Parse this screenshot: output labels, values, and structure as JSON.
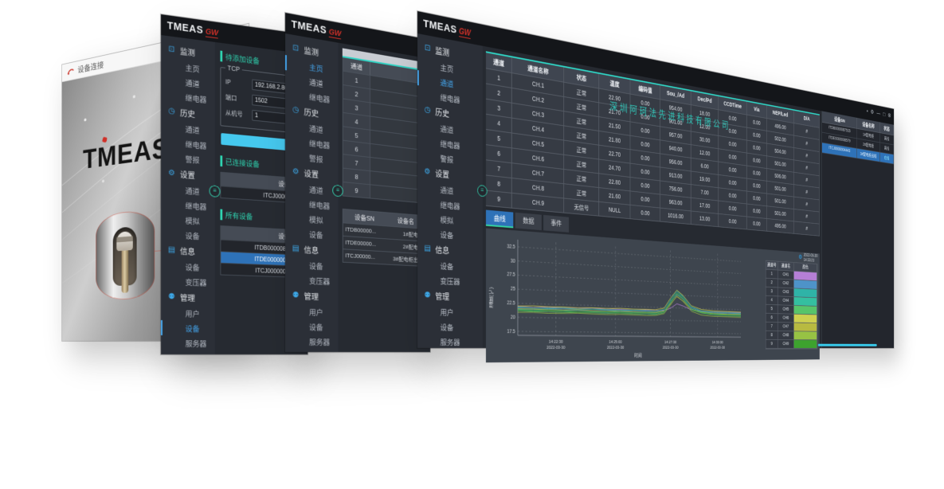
{
  "brand": {
    "name": "TMEAS",
    "suffix": "GW"
  },
  "win1": {
    "title": "设备连接",
    "logo_text": "TMEAS"
  },
  "win2": {
    "sidebar": [
      {
        "glyph": "⊡",
        "label": "监测",
        "items": [
          {
            "t": "主页"
          },
          {
            "t": "通道"
          },
          {
            "t": "继电器"
          }
        ]
      },
      {
        "glyph": "◷",
        "label": "历史",
        "items": [
          {
            "t": "通道"
          },
          {
            "t": "继电器"
          },
          {
            "t": "警报"
          }
        ]
      },
      {
        "glyph": "⚙",
        "label": "设置",
        "items": [
          {
            "t": "通道"
          },
          {
            "t": "继电器"
          },
          {
            "t": "模拟"
          },
          {
            "t": "设备"
          }
        ]
      },
      {
        "glyph": "▤",
        "label": "信息",
        "items": [
          {
            "t": "设备"
          },
          {
            "t": "变压器"
          }
        ]
      },
      {
        "glyph": "⚉",
        "label": "管理",
        "items": [
          {
            "t": "用户"
          },
          {
            "t": "设备",
            "sel": true
          },
          {
            "t": "服务器"
          }
        ]
      }
    ],
    "pending_header": "待添加设备",
    "tcp_label": "TCP",
    "fields": [
      {
        "label": "IP",
        "value": "192.168.2.86"
      },
      {
        "label": "端口",
        "value": "1502"
      },
      {
        "label": "从机号",
        "value": "1"
      }
    ],
    "connected_header": "已连接设备",
    "sn_col": "设备SN",
    "connected_rows": [
      "ITCJ000000..."
    ],
    "all_header": "所有设备",
    "all_rows": [
      {
        "sn": "ITDB0000087515"
      },
      {
        "sn": "ITDE0000008579",
        "sel": true
      },
      {
        "sn": "ITCJ0000004443"
      }
    ]
  },
  "win3": {
    "sidebar": [
      {
        "glyph": "⊡",
        "label": "监测",
        "items": [
          {
            "t": "主页",
            "sel": true
          },
          {
            "t": "通道"
          },
          {
            "t": "继电器"
          }
        ]
      },
      {
        "glyph": "◷",
        "label": "历史",
        "items": [
          {
            "t": "通道"
          },
          {
            "t": "继电器"
          },
          {
            "t": "警报"
          }
        ]
      },
      {
        "glyph": "⚙",
        "label": "设置",
        "items": [
          {
            "t": "通道"
          },
          {
            "t": "继电器"
          },
          {
            "t": "模拟"
          },
          {
            "t": "设备"
          }
        ]
      },
      {
        "glyph": "▤",
        "label": "信息",
        "items": [
          {
            "t": "设备"
          },
          {
            "t": "变压器"
          }
        ]
      },
      {
        "glyph": "⚉",
        "label": "管理",
        "items": [
          {
            "t": "用户"
          },
          {
            "t": "设备"
          },
          {
            "t": "服务器"
          }
        ]
      }
    ],
    "channel_header": "通道",
    "channel_rows": [
      "1",
      "2",
      "3",
      "4",
      "5",
      "6",
      "7",
      "8",
      "9"
    ],
    "device_headers": [
      "设备SN",
      "设备名"
    ],
    "device_rows": [
      {
        "sn": "ITDB00000...",
        "name": "1#配电柜"
      },
      {
        "sn": "ITDE00000...",
        "name": "2#配电柜"
      },
      {
        "sn": "ITCJ00000...",
        "name": "3#配电柜出线"
      }
    ]
  },
  "win4": {
    "sidebar": [
      {
        "glyph": "⊡",
        "label": "监测",
        "items": [
          {
            "t": "主页"
          },
          {
            "t": "通道",
            "sel": true
          },
          {
            "t": "继电器"
          }
        ]
      },
      {
        "glyph": "◷",
        "label": "历史",
        "items": [
          {
            "t": "通道"
          },
          {
            "t": "继电器"
          },
          {
            "t": "警报"
          }
        ]
      },
      {
        "glyph": "⚙",
        "label": "设置",
        "items": [
          {
            "t": "通道"
          },
          {
            "t": "继电器"
          },
          {
            "t": "模拟"
          },
          {
            "t": "设备"
          }
        ]
      },
      {
        "glyph": "▤",
        "label": "信息",
        "items": [
          {
            "t": "设备"
          },
          {
            "t": "变压器"
          }
        ]
      },
      {
        "glyph": "⚉",
        "label": "管理",
        "items": [
          {
            "t": "用户"
          },
          {
            "t": "设备"
          },
          {
            "t": "服务器"
          }
        ]
      }
    ],
    "titlebar_icons": [
      {
        "name": "pin-icon",
        "glyph": "▪"
      },
      {
        "name": "settings-icon",
        "glyph": "⚙"
      },
      {
        "name": "minimize-icon",
        "glyph": "—"
      },
      {
        "name": "maximize-icon",
        "glyph": "□"
      },
      {
        "name": "close-icon",
        "glyph": "⊗"
      }
    ],
    "watermark": "深圳阿珂法先进科技有限公司",
    "table": {
      "headers": [
        "通道",
        "通道名称",
        "状态",
        "温度",
        "编码值",
        "Sou_/Ad",
        "Dec/Pd",
        "CCDTime",
        "Via",
        "NEP/Led",
        "D/A"
      ],
      "rows": [
        [
          "1",
          "CH.1",
          "正常",
          "22.90",
          "0.00",
          "954.00",
          "18.00",
          "0.00",
          "0.00",
          "495.00",
          "#"
        ],
        [
          "2",
          "CH.2",
          "正常",
          "21.70",
          "0.00",
          "901.00",
          "12.00",
          "0.00",
          "0.00",
          "502.00",
          "#"
        ],
        [
          "3",
          "CH.3",
          "正常",
          "21.50",
          "0.00",
          "957.00",
          "30.00",
          "0.00",
          "0.00",
          "504.00",
          "#"
        ],
        [
          "4",
          "CH.4",
          "正常",
          "21.80",
          "0.00",
          "940.00",
          "12.00",
          "0.00",
          "0.00",
          "501.00",
          "#"
        ],
        [
          "5",
          "CH.5",
          "正常",
          "22.70",
          "0.00",
          "956.00",
          "6.00",
          "0.00",
          "0.00",
          "506.00",
          "#"
        ],
        [
          "6",
          "CH.6",
          "正常",
          "24.70",
          "0.00",
          "913.00",
          "19.00",
          "0.00",
          "0.00",
          "501.00",
          "#"
        ],
        [
          "7",
          "CH.7",
          "正常",
          "22.80",
          "0.00",
          "756.00",
          "7.00",
          "0.00",
          "0.00",
          "501.00",
          "#"
        ],
        [
          "8",
          "CH.8",
          "正常",
          "21.60",
          "0.00",
          "963.00",
          "17.00",
          "0.00",
          "0.00",
          "501.00",
          "#"
        ],
        [
          "9",
          "CH.9",
          "无信号",
          "NULL",
          "0.00",
          "1016.00",
          "13.00",
          "0.00",
          "0.00",
          "495.00",
          "#"
        ]
      ]
    },
    "tabs": [
      {
        "label": "曲线",
        "active": true
      },
      {
        "label": "数据"
      },
      {
        "label": "事件"
      }
    ],
    "chart_date": "2022-03-30",
    "chart_time": "14:33:23",
    "right_panel": {
      "headers": [
        "设备SN",
        "设备名称",
        "状态"
      ],
      "rows": [
        {
          "sn": "ITDB0000087515",
          "name": "1#配电柜",
          "status": "离线"
        },
        {
          "sn": "ITDE0000008579",
          "name": "2#配电柜",
          "status": "离线"
        },
        {
          "sn": "ITCJ0000004443",
          "name": "3#配电柜出线",
          "status": "在线",
          "sel": true
        }
      ]
    }
  },
  "chart_data": {
    "type": "line",
    "title": "",
    "xlabel": "时间",
    "ylabel": "温度(℃)",
    "ylim": [
      16.8,
      33.8
    ],
    "yticks": [
      32.5,
      30,
      27.5,
      25,
      22.5,
      20,
      17.5
    ],
    "xticks": [
      {
        "time": "14:22:30",
        "date": "2022-03-30",
        "f": 0.15
      },
      {
        "time": "14:25:00",
        "date": "2022-03-30",
        "f": 0.4
      },
      {
        "time": "14:27:30",
        "date": "2022-03-30",
        "f": 0.65
      },
      {
        "time": "14:30:00",
        "date": "2022-03-30",
        "f": 0.88
      }
    ],
    "grid": true,
    "x": [
      0,
      0.06,
      0.12,
      0.18,
      0.24,
      0.3,
      0.36,
      0.42,
      0.48,
      0.54,
      0.58,
      0.62,
      0.65,
      0.68,
      0.71,
      0.75,
      0.8,
      0.86,
      0.93,
      1
    ],
    "series": [
      {
        "name": "CH1",
        "color": "#b57fd6",
        "values": [
          21.9,
          21.8,
          21.95,
          21.85,
          21.9,
          22.0,
          21.85,
          21.9,
          21.8,
          21.9,
          21.85,
          21.9,
          22.4,
          23.3,
          22.9,
          22.2,
          21.95,
          21.9,
          21.85,
          21.9
        ]
      },
      {
        "name": "CH2",
        "color": "#4e93c9",
        "values": [
          21.6,
          21.5,
          21.65,
          21.55,
          21.6,
          21.5,
          21.6,
          21.7,
          21.55,
          21.6,
          21.5,
          21.8,
          23.5,
          25.1,
          24.3,
          22.6,
          21.9,
          21.7,
          21.6,
          21.65
        ]
      },
      {
        "name": "CH3",
        "color": "#2fb3a7",
        "values": [
          21.4,
          21.3,
          21.45,
          21.35,
          21.5,
          21.4,
          21.3,
          21.45,
          21.4,
          21.35,
          21.3,
          21.7,
          23.8,
          25.6,
          24.6,
          22.4,
          21.7,
          21.5,
          21.45,
          21.4
        ]
      },
      {
        "name": "CH4",
        "color": "#34bfa0",
        "values": [
          21.8,
          21.7,
          21.75,
          21.85,
          21.7,
          21.8,
          21.75,
          21.7,
          21.8,
          21.75,
          21.7,
          22.1,
          24.1,
          25.9,
          24.8,
          22.8,
          22.0,
          21.85,
          21.8,
          21.75
        ]
      },
      {
        "name": "CH5",
        "color": "#57c46a",
        "values": [
          21.2,
          21.1,
          21.15,
          21.05,
          21.2,
          21.15,
          21.1,
          21.2,
          21.1,
          21.15,
          21.1,
          21.5,
          23.4,
          25.3,
          24.2,
          22.2,
          21.6,
          21.3,
          21.2,
          21.15
        ]
      },
      {
        "name": "CH6",
        "color": "#cdd04f",
        "values": [
          22.0,
          22.1,
          22.0,
          22.05,
          21.95,
          22.05,
          22.0,
          22.1,
          22.0,
          22.05,
          22.0,
          22.4,
          24.4,
          26.0,
          25.0,
          23.0,
          22.3,
          22.1,
          22.05,
          22.0
        ]
      },
      {
        "name": "CH7",
        "color": "#b8ba41",
        "values": [
          21.5,
          21.55,
          21.45,
          21.5,
          21.6,
          21.5,
          21.45,
          21.55,
          21.5,
          21.45,
          21.5,
          21.8,
          23.2,
          24.7,
          23.9,
          22.3,
          21.8,
          21.6,
          21.5,
          21.55
        ]
      },
      {
        "name": "CH8",
        "color": "#97c244",
        "values": [
          20.9,
          20.95,
          20.85,
          20.9,
          21.0,
          20.9,
          20.85,
          20.95,
          20.9,
          20.85,
          20.9,
          21.3,
          23.0,
          24.9,
          23.8,
          21.9,
          21.2,
          21.0,
          20.95,
          20.9
        ]
      },
      {
        "name": "CH9",
        "color": "#3da32e",
        "values": [
          21.3,
          21.25,
          21.35,
          21.3,
          21.2,
          21.3,
          21.35,
          21.25,
          21.3,
          21.35,
          21.3,
          21.7,
          23.6,
          25.4,
          24.4,
          22.3,
          21.7,
          21.45,
          21.35,
          21.3
        ]
      }
    ],
    "legend": {
      "position": "right",
      "headers": [
        "通道号",
        "通道名",
        "颜色"
      ],
      "rows": [
        {
          "num": "1",
          "name": "CH1",
          "color": "#b57fd6"
        },
        {
          "num": "2",
          "name": "CH2",
          "color": "#4e93c9"
        },
        {
          "num": "3",
          "name": "CH3",
          "color": "#2fb3a7"
        },
        {
          "num": "4",
          "name": "CH4",
          "color": "#34bfa0"
        },
        {
          "num": "5",
          "name": "CH5",
          "color": "#57c46a"
        },
        {
          "num": "6",
          "name": "CH6",
          "color": "#cdd04f"
        },
        {
          "num": "7",
          "name": "CH7",
          "color": "#b8ba41"
        },
        {
          "num": "8",
          "name": "CH8",
          "color": "#97c244"
        },
        {
          "num": "9",
          "name": "CH9",
          "color": "#3da32e"
        }
      ]
    }
  }
}
